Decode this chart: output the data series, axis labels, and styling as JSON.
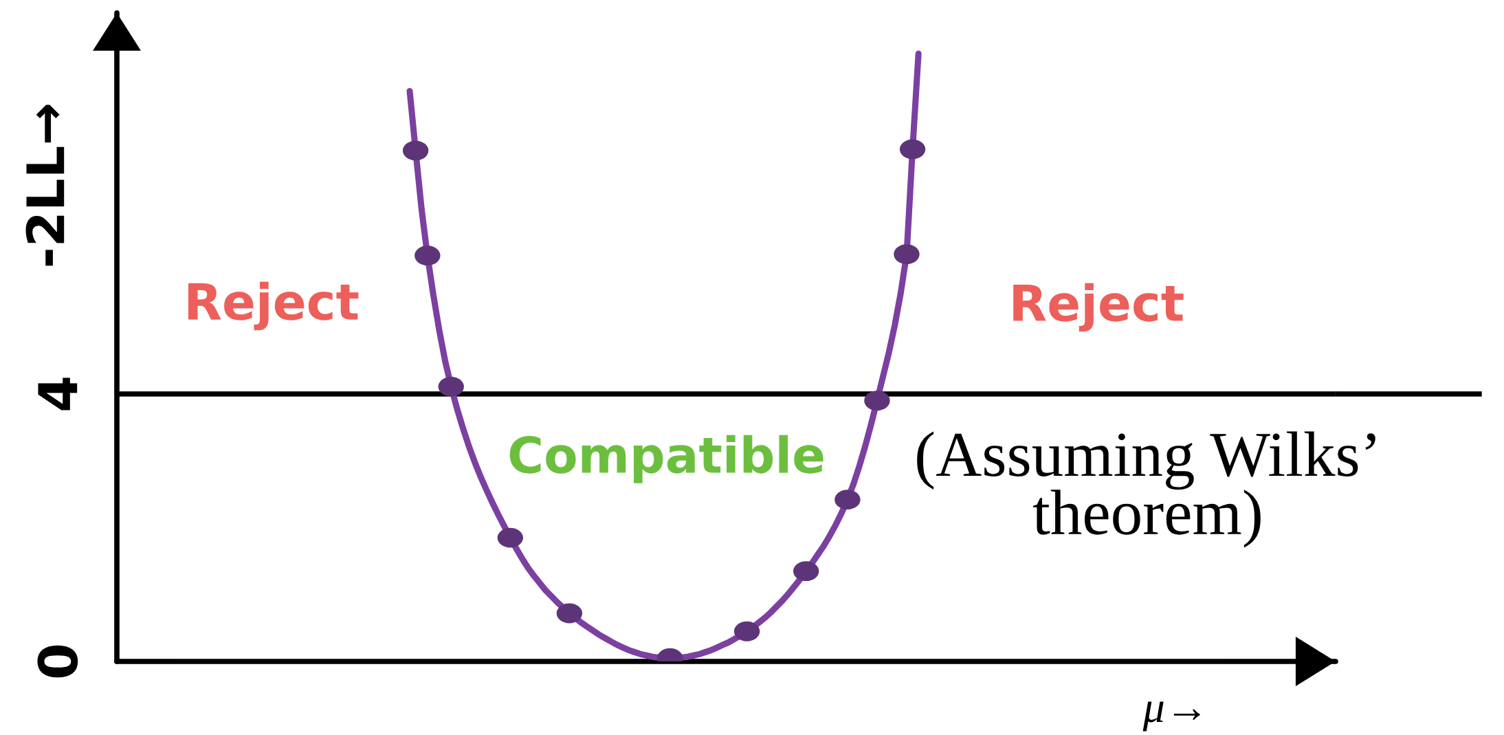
{
  "chart_data": {
    "type": "line",
    "categories": [
      null,
      null,
      null,
      null,
      null,
      null,
      null,
      null,
      null,
      null,
      null,
      null,
      null,
      null,
      null,
      null,
      null,
      null,
      null,
      null,
      null,
      null,
      null,
      null,
      null,
      null,
      null,
      null,
      null,
      null,
      null,
      null,
      null,
      null,
      null,
      null,
      null,
      null,
      null,
      null,
      null,
      null,
      null,
      null,
      null,
      null,
      null,
      null,
      null,
      null,
      null,
      null,
      null,
      null,
      null,
      null,
      null,
      null,
      null,
      null,
      null,
      null,
      null,
      null,
      null,
      null,
      null,
      null,
      null,
      null,
      null,
      null,
      null,
      null,
      null,
      null,
      null,
      null,
      null,
      null,
      null,
      null,
      null,
      null,
      null,
      null,
      null,
      null,
      null,
      null,
      null,
      null,
      null,
      null,
      null,
      null,
      null,
      null,
      null,
      null,
      null,
      null,
      null,
      null,
      null,
      null,
      null,
      null,
      null,
      null,
      null,
      null,
      null,
      null,
      null,
      null,
      null,
      null,
      null,
      null,
      null,
      null,
      null,
      null,
      null,
      null,
      null,
      null,
      null,
      null,
      null,
      null,
      null,
      null,
      null,
      null,
      null,
      null,
      null,
      null,
      null,
      null,
      null,
      null,
      null,
      null,
      null,
      null,
      null,
      null,
      null,
      null,
      null,
      null,
      null,
      null,
      null,
      null,
      null,
      null,
      null,
      null,
      null,
      null,
      null,
      null,
      null,
      null,
      null,
      null,
      null,
      null,
      null,
      null,
      null,
      null,
      null,
      null,
      null,
      null,
      null,
      null,
      null,
      null,
      null,
      null,
      null,
      null,
      null,
      null,
      null,
      null,
      null,
      null,
      null,
      null,
      null,
      null,
      null,
      null,
      null,
      null,
      null,
      null,
      null,
      null
    ],
    "series": [
      {
        "color": "#7b40a1",
        "values": [
          null,
          null,
          null,
          null,
          null,
          null,
          null,
          null,
          null,
          null,
          null,
          null,
          null,
          null,
          null,
          null,
          null,
          null,
          null,
          null,
          null,
          null,
          null,
          null,
          null,
          null,
          null,
          null,
          null,
          null,
          null,
          null,
          null,
          null,
          null,
          null,
          null,
          null,
          null,
          null,
          null,
          null,
          null,
          null,
          null,
          null,
          null,
          null,
          null,
          8.53,
          7.64,
          6.77,
          6.07,
          5.48,
          4.95,
          4.49,
          4.11,
          3.78,
          3.49,
          3.22,
          2.98,
          2.76,
          2.56,
          2.37,
          2.19,
          2.02,
          1.85,
          1.69,
          1.54,
          1.4,
          1.28,
          1.17,
          1.06,
          0.97,
          0.88,
          0.8,
          0.72,
          0.65,
          0.58,
          0.52,
          0.46,
          0.4,
          0.35,
          0.3,
          0.25,
          0.21,
          0.17,
          0.14,
          0.11,
          0.09,
          0.07,
          0.06,
          0.05,
          0.05,
          0.05,
          0.06,
          0.07,
          0.09,
          0.11,
          0.14,
          0.17,
          0.21,
          0.25,
          0.29,
          0.34,
          0.39,
          0.45,
          0.51,
          0.58,
          0.65,
          0.73,
          0.82,
          0.91,
          1.01,
          1.12,
          1.23,
          1.35,
          1.47,
          1.6,
          1.73,
          1.88,
          2.04,
          2.22,
          2.42,
          2.65,
          2.92,
          3.22,
          3.55,
          3.9,
          4.26,
          4.62,
          5.03,
          5.51,
          6.09,
          7.66,
          9.09,
          null,
          null,
          null,
          null,
          null,
          null,
          null,
          null,
          null,
          null,
          null,
          null,
          null,
          null,
          null,
          null,
          null,
          null,
          null,
          null,
          null,
          null,
          null,
          null,
          null,
          null,
          null,
          null,
          null,
          null,
          null,
          null,
          null,
          null,
          null,
          null,
          null,
          null,
          null,
          null,
          null,
          null,
          null,
          null,
          null,
          null,
          null,
          null,
          null,
          null,
          null,
          null,
          null,
          null,
          null,
          null,
          null,
          null,
          null,
          null,
          null,
          null,
          null,
          null,
          null,
          null,
          null,
          null,
          null,
          null
        ]
      },
      {
        "type": "scatter",
        "color": "#5e3479",
        "marker": "circle",
        "values": [
          null,
          null,
          null,
          null,
          null,
          null,
          null,
          null,
          null,
          null,
          null,
          null,
          null,
          null,
          null,
          null,
          null,
          null,
          null,
          null,
          null,
          null,
          null,
          null,
          null,
          null,
          null,
          null,
          null,
          null,
          null,
          null,
          null,
          null,
          null,
          null,
          null,
          null,
          null,
          null,
          null,
          null,
          null,
          null,
          null,
          null,
          null,
          null,
          null,
          null,
          7.64,
          null,
          6.07,
          null,
          null,
          null,
          4.11,
          null,
          null,
          null,
          null,
          null,
          null,
          null,
          null,
          null,
          1.85,
          null,
          null,
          null,
          null,
          null,
          null,
          null,
          null,
          null,
          0.72,
          null,
          null,
          null,
          null,
          null,
          null,
          null,
          null,
          null,
          null,
          null,
          null,
          null,
          null,
          null,
          null,
          0.05,
          null,
          null,
          null,
          null,
          null,
          null,
          null,
          null,
          null,
          null,
          null,
          null,
          0.45,
          null,
          null,
          null,
          null,
          null,
          null,
          null,
          null,
          null,
          1.35,
          null,
          null,
          null,
          null,
          null,
          null,
          2.42,
          null,
          null,
          null,
          null,
          3.9,
          null,
          null,
          null,
          null,
          6.09,
          7.66,
          null,
          null,
          null,
          null,
          null,
          null,
          null,
          null,
          null,
          null,
          null,
          null,
          null,
          null,
          null,
          null,
          null,
          null,
          null,
          null,
          null,
          null,
          null,
          null,
          null,
          null,
          null,
          null,
          null,
          null,
          null,
          null,
          null,
          null,
          null,
          null,
          null,
          null,
          null,
          null,
          null,
          null,
          null,
          null,
          null,
          null,
          null,
          null,
          null,
          null,
          null,
          null,
          null,
          null,
          null,
          null,
          null,
          null,
          null,
          null,
          null,
          null,
          null,
          null,
          null,
          null,
          null,
          null,
          null,
          null,
          null
        ]
      }
    ],
    "ylim": [
      0,
      9.7
    ],
    "yticks": [
      0,
      4
    ],
    "ylabel": "-2LL→",
    "xlabel": "μ→",
    "tick_labels": "y",
    "marker": "none",
    "line_style": "solid",
    "ref_lines": [
      {
        "axis": "y",
        "value": 4,
        "color": "#000000"
      }
    ],
    "annotations": [
      "Reject",
      "Reject",
      "Compatible",
      "(Assuming Wilks’\ntheorem)"
    ]
  }
}
